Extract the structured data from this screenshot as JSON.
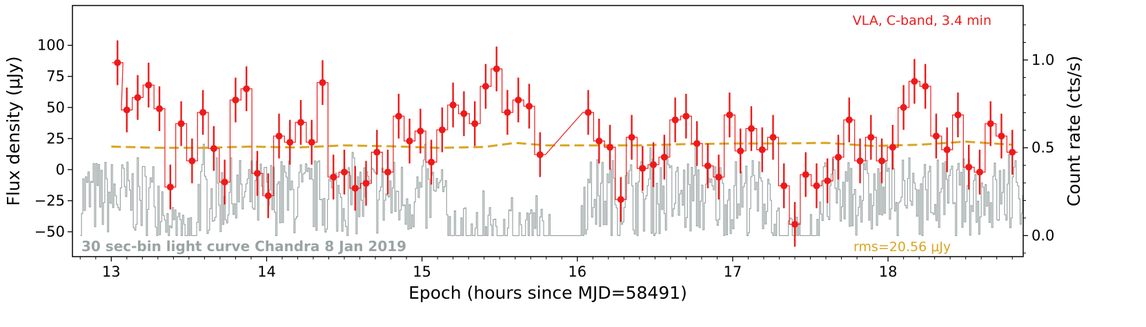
{
  "chart_data": {
    "type": "line",
    "xlabel": "Epoch (hours since MJD=58491)",
    "ylabel": "Flux density (μJy)",
    "y2label": "Count rate (cts/s)",
    "xlim": [
      12.75,
      18.87
    ],
    "ylim": [
      -70,
      132
    ],
    "y2lim": [
      -0.12,
      1.31
    ],
    "x_ticks": [
      "13",
      "14",
      "15",
      "16",
      "17",
      "18"
    ],
    "y_ticks": [
      "100",
      "75",
      "50",
      "25",
      "0",
      "−25",
      "−50"
    ],
    "y2_ticks": [
      "1.0",
      "0.5",
      "0.0"
    ],
    "series": [
      {
        "name": "VLA, C-band, 3.4 min",
        "color": "#ee1a1a",
        "style": "steps with error bars",
        "error": 18,
        "x": [
          13.04,
          13.1,
          13.17,
          13.24,
          13.31,
          13.38,
          13.45,
          13.52,
          13.59,
          13.66,
          13.73,
          13.8,
          13.87,
          13.94,
          14.01,
          14.08,
          14.15,
          14.22,
          14.29,
          14.36,
          14.43,
          14.5,
          14.57,
          14.64,
          14.71,
          14.78,
          14.85,
          14.92,
          14.99,
          15.06,
          15.13,
          15.2,
          15.27,
          15.34,
          15.41,
          15.48,
          15.55,
          15.62,
          15.69,
          15.76,
          16.07,
          16.14,
          16.21,
          16.28,
          16.35,
          16.42,
          16.49,
          16.56,
          16.63,
          16.7,
          16.77,
          16.84,
          16.91,
          16.98,
          17.05,
          17.12,
          17.19,
          17.26,
          17.33,
          17.4,
          17.47,
          17.54,
          17.61,
          17.68,
          17.75,
          17.82,
          17.89,
          17.96,
          18.03,
          18.1,
          18.17,
          18.24,
          18.31,
          18.38,
          18.45,
          18.52,
          18.59,
          18.66,
          18.73,
          18.8
        ],
        "y": [
          86,
          48,
          58,
          68,
          49,
          -14,
          37,
          7,
          46,
          17,
          -10,
          56,
          65,
          -3,
          -21,
          27,
          22,
          38,
          22,
          70,
          -6,
          -2,
          -15,
          -11,
          14,
          -2,
          43,
          23,
          31,
          6,
          32,
          52,
          45,
          37,
          67,
          81,
          46,
          56,
          51,
          12,
          46,
          23,
          18,
          -24,
          26,
          1,
          4,
          10,
          40,
          43,
          21,
          3,
          -6,
          44,
          15,
          33,
          16,
          26,
          -13,
          -44,
          -4,
          -13,
          -9,
          10,
          40,
          7,
          26,
          7,
          18,
          50,
          71,
          67,
          27,
          16,
          44,
          2,
          -2,
          37,
          27,
          14
        ]
      },
      {
        "name": "rms=20.56 μJy",
        "color": "#daa520",
        "style": "dashed",
        "x": [
          13.0,
          13.3,
          13.6,
          13.9,
          14.2,
          14.5,
          14.8,
          15.1,
          15.4,
          15.6,
          15.8,
          16.1,
          16.4,
          16.7,
          17.0,
          17.3,
          17.6,
          17.9,
          18.2,
          18.5,
          18.8
        ],
        "y": [
          18.5,
          17.5,
          17.5,
          18.5,
          17.8,
          19.5,
          18.8,
          17.5,
          18.2,
          21.5,
          19.5,
          19.5,
          19.5,
          20.5,
          21.0,
          21.0,
          21.5,
          19.0,
          20.0,
          22.5,
          20.0
        ]
      },
      {
        "name": "30 sec-bin light curve Chandra 8 Jan 2019",
        "color": "#9aa3a3",
        "style": "steps (right axis)",
        "axis": "right",
        "bin_seconds": 30,
        "x_start": 12.8,
        "x_end": 18.87
      }
    ]
  },
  "annotations": {
    "vla_label": "VLA, C-band, 3.4 min",
    "chandra_label": "30 sec-bin light curve Chandra 8 Jan 2019",
    "rms_label": "rms=20.56 μJy"
  },
  "colors": {
    "vla": "#ee1a1a",
    "rms": "#daa520",
    "chandra": "#9aa3a3",
    "axes": "#000000"
  }
}
